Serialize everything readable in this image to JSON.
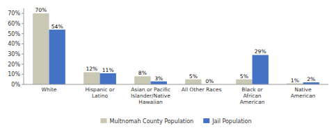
{
  "chart_data": {
    "type": "bar",
    "categories": [
      "White",
      "Hispanic or\nLatino",
      "Asian or Pacific\nIslander/Native\nHawaiian",
      "All Other Races",
      "Black or\nAfrican\nAmerican",
      "Native\nAmerican"
    ],
    "series": [
      {
        "name": "Multnomah County Population",
        "color": "#c8c8b4",
        "values": [
          70,
          12,
          8,
          5,
          5,
          1
        ],
        "value_labels": [
          "70%",
          "12%",
          "8%",
          "5%",
          "5%",
          "1%"
        ]
      },
      {
        "name": "Jail Population",
        "color": "#4472c4",
        "values": [
          54,
          11,
          3,
          0,
          29,
          2
        ],
        "value_labels": [
          "54%",
          "11%",
          "3%",
          "0%",
          "29%",
          "2%"
        ]
      }
    ],
    "ylim": [
      0,
      75
    ],
    "yticks": [
      {
        "value": 0,
        "label": "0%"
      },
      {
        "value": 10,
        "label": "10%"
      },
      {
        "value": 20,
        "label": "20%"
      },
      {
        "value": 30,
        "label": "30%"
      },
      {
        "value": 40,
        "label": "40%"
      },
      {
        "value": 50,
        "label": "50%"
      },
      {
        "value": 60,
        "label": "60%"
      },
      {
        "value": 70,
        "label": "70%"
      }
    ],
    "data_labels": true,
    "legend": "bottom",
    "grid": false
  }
}
